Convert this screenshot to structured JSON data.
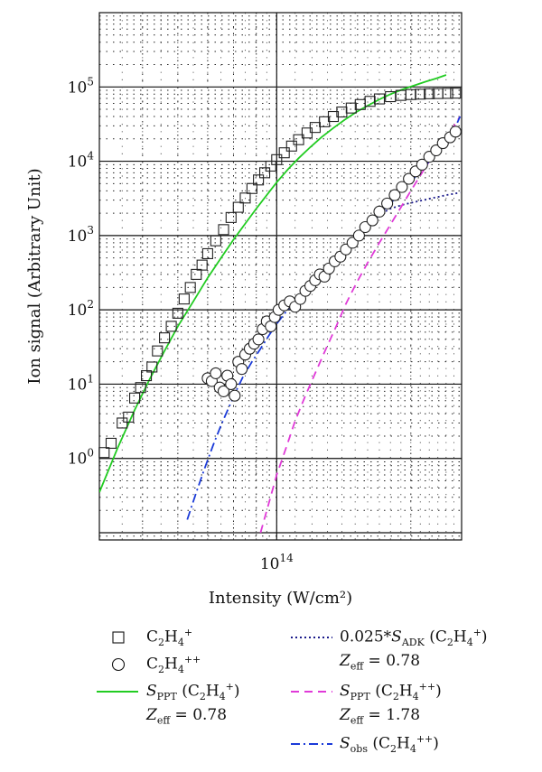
{
  "chart_data": {
    "type": "scatter",
    "xscale": "log",
    "yscale": "log",
    "xlim": [
      40000000000000.0,
      260000000000000.0
    ],
    "ylim": [
      0.08,
      1000000
    ],
    "grid": true,
    "xlabel": "Intensity (W/cm²)",
    "ylabel": "Ion signal (Arbitrary Unit)",
    "x_tick_labels": [
      {
        "value": 100000000000000.0,
        "label": "10",
        "exp": "14"
      }
    ],
    "y_tick_labels": [
      {
        "value": 1,
        "label": "10",
        "exp": "0"
      },
      {
        "value": 10,
        "label": "10",
        "exp": "1"
      },
      {
        "value": 100,
        "label": "10",
        "exp": "2"
      },
      {
        "value": 1000,
        "label": "10",
        "exp": "3"
      },
      {
        "value": 10000,
        "label": "10",
        "exp": "4"
      },
      {
        "value": 100000,
        "label": "10",
        "exp": "5"
      }
    ],
    "series": [
      {
        "name": "C2H4+",
        "kind": "marker-square",
        "color": "#222222",
        "x": [
          41000000000000.0,
          42500000000000.0,
          45000000000000.0,
          46500000000000.0,
          48000000000000.0,
          49500000000000.0,
          51000000000000.0,
          52500000000000.0,
          54000000000000.0,
          56000000000000.0,
          58000000000000.0,
          60000000000000.0,
          62000000000000.0,
          64000000000000.0,
          66000000000000.0,
          68000000000000.0,
          70000000000000.0,
          73000000000000.0,
          76000000000000.0,
          79000000000000.0,
          82000000000000.0,
          85000000000000.0,
          88000000000000.0,
          91000000000000.0,
          94000000000000.0,
          97000000000000.0,
          100000000000000.0,
          104000000000000.0,
          108000000000000.0,
          112000000000000.0,
          117000000000000.0,
          122000000000000.0,
          128000000000000.0,
          134000000000000.0,
          140000000000000.0,
          147000000000000.0,
          154000000000000.0,
          162000000000000.0,
          170000000000000.0,
          180000000000000.0,
          190000000000000.0,
          200000000000000.0,
          210000000000000.0,
          220000000000000.0,
          230000000000000.0,
          242000000000000.0,
          252000000000000.0
        ],
        "y": [
          1.2,
          1.6,
          3.0,
          3.6,
          6.5,
          9,
          13,
          17,
          28,
          42,
          60,
          90,
          140,
          200,
          300,
          400,
          570,
          850,
          1200,
          1750,
          2400,
          3200,
          4300,
          5600,
          7000,
          8600,
          10500,
          13000,
          16000,
          19500,
          24000,
          28500,
          34000,
          40000,
          46000,
          52000,
          58000,
          64000,
          69000,
          74000,
          77000,
          79000,
          80000,
          81000,
          81500,
          82000,
          82500
        ]
      },
      {
        "name": "C2H4++",
        "kind": "marker-circle",
        "color": "#222222",
        "x": [
          70000000000000.0,
          71500000000000.0,
          73000000000000.0,
          74500000000000.0,
          76000000000000.0,
          77500000000000.0,
          79000000000000.0,
          80500000000000.0,
          82000000000000.0,
          83500000000000.0,
          85000000000000.0,
          87000000000000.0,
          89000000000000.0,
          91000000000000.0,
          93000000000000.0,
          95000000000000.0,
          97000000000000.0,
          99000000000000.0,
          101000000000000.0,
          104000000000000.0,
          107000000000000.0,
          110000000000000.0,
          113000000000000.0,
          116000000000000.0,
          119000000000000.0,
          122000000000000.0,
          125000000000000.0,
          128000000000000.0,
          131000000000000.0,
          135000000000000.0,
          139000000000000.0,
          143000000000000.0,
          148000000000000.0,
          153000000000000.0,
          158000000000000.0,
          164000000000000.0,
          170000000000000.0,
          177000000000000.0,
          184000000000000.0,
          191000000000000.0,
          198000000000000.0,
          205000000000000.0,
          212000000000000.0,
          220000000000000.0,
          228000000000000.0,
          236000000000000.0,
          245000000000000.0,
          252000000000000.0
        ],
        "y": [
          12,
          11,
          14,
          9,
          8,
          13,
          10,
          7,
          20,
          16,
          25,
          30,
          35,
          40,
          55,
          70,
          60,
          80,
          100,
          115,
          130,
          110,
          140,
          180,
          210,
          250,
          300,
          280,
          360,
          450,
          520,
          650,
          800,
          1000,
          1300,
          1600,
          2100,
          2700,
          3500,
          4500,
          5800,
          7300,
          9000,
          11500,
          14000,
          17500,
          21000,
          25000
        ]
      },
      {
        "name": "S_PPT (C2H4+), Zeff = 0.78",
        "kind": "line",
        "color": "#22cc22",
        "dash": "none",
        "x": [
          40000000000000.0,
          44000000000000.0,
          48000000000000.0,
          52000000000000.0,
          56000000000000.0,
          60000000000000.0,
          65000000000000.0,
          70000000000000.0,
          75000000000000.0,
          80000000000000.0,
          85000000000000.0,
          90000000000000.0,
          95000000000000.0,
          100000000000000.0,
          106000000000000.0,
          112000000000000.0,
          119000000000000.0,
          126000000000000.0,
          134000000000000.0,
          142000000000000.0,
          151000000000000.0,
          160000000000000.0,
          170000000000000.0,
          180000000000000.0,
          192000000000000.0,
          204000000000000.0,
          216000000000000.0,
          228000000000000.0,
          240000000000000.0
        ],
        "y": [
          0.35,
          1.4,
          4.5,
          12,
          28,
          60,
          130,
          270,
          500,
          880,
          1450,
          2300,
          3500,
          5200,
          7800,
          11000,
          15500,
          21000,
          28000,
          36000,
          46000,
          56000,
          68000,
          80000,
          93000,
          105000,
          118000,
          130000,
          145000
        ]
      },
      {
        "name": "0.025*S_ADK (C2H4+), Zeff = 0.78",
        "kind": "line",
        "color": "#1a1a8a",
        "dash": "2,3",
        "x": [
          160000000000000.0,
          165000000000000.0,
          170000000000000.0,
          175000000000000.0,
          180000000000000.0,
          186000000000000.0,
          192000000000000.0,
          200000000000000.0,
          208000000000000.0,
          216000000000000.0,
          224000000000000.0,
          232000000000000.0,
          240000000000000.0,
          250000000000000.0,
          258000000000000.0
        ],
        "y": [
          1400,
          1650,
          1900,
          2100,
          2300,
          2450,
          2600,
          2750,
          2900,
          3050,
          3200,
          3350,
          3500,
          3650,
          3800
        ]
      },
      {
        "name": "S_PPT (C2H4++), Zeff = 1.78",
        "kind": "line",
        "color": "#e03ad8",
        "dash": "9,6",
        "x": [
          92000000000000.0,
          96000000000000.0,
          100000000000000.0,
          105000000000000.0,
          110000000000000.0,
          116000000000000.0,
          122000000000000.0,
          129000000000000.0,
          136000000000000.0,
          143000000000000.0,
          151000000000000.0,
          160000000000000.0,
          170000000000000.0,
          180000000000000.0,
          190000000000000.0,
          200000000000000.0,
          210000000000000.0,
          220000000000000.0,
          230000000000000.0,
          242000000000000.0,
          258000000000000.0
        ],
        "y": [
          0.1,
          0.25,
          0.6,
          1.4,
          3.2,
          7,
          14,
          30,
          60,
          120,
          230,
          430,
          800,
          1400,
          2400,
          4000,
          6400,
          10000,
          15000,
          22000,
          40000
        ]
      },
      {
        "name": "S_obs (C2H4++)",
        "kind": "line",
        "color": "#1a3ad8",
        "dash": "10,4,2,4",
        "x": [
          63000000000000.0,
          66000000000000.0,
          69000000000000.0,
          72000000000000.0,
          75000000000000.0,
          78000000000000.0,
          81000000000000.0,
          84000000000000.0,
          88000000000000.0,
          92000000000000.0,
          96000000000000.0,
          100000000000000.0,
          105000000000000.0,
          110000000000000.0,
          116000000000000.0,
          122000000000000.0,
          129000000000000.0,
          136000000000000.0,
          144000000000000.0,
          152000000000000.0,
          161000000000000.0,
          170000000000000.0,
          180000000000000.0,
          190000000000000.0,
          200000000000000.0,
          210000000000000.0,
          220000000000000.0,
          232000000000000.0,
          245000000000000.0,
          258000000000000.0
        ],
        "y": [
          0.15,
          0.35,
          0.75,
          1.5,
          2.8,
          4.8,
          8,
          12.5,
          20,
          30,
          45,
          65,
          95,
          130,
          180,
          250,
          350,
          480,
          680,
          950,
          1350,
          1900,
          2700,
          3800,
          5300,
          7300,
          10000,
          14000,
          20000,
          40000
        ]
      }
    ],
    "legend": {
      "placement": "bottom",
      "entries": [
        {
          "symbol": "square",
          "parts": [
            [
              "n",
              "C"
            ],
            [
              "sub",
              "2"
            ],
            [
              "n",
              "H"
            ],
            [
              "sub",
              "4"
            ],
            [
              "sup",
              "+"
            ]
          ]
        },
        {
          "symbol": "circle",
          "parts": [
            [
              "n",
              "C"
            ],
            [
              "sub",
              "2"
            ],
            [
              "n",
              "H"
            ],
            [
              "sub",
              "4"
            ],
            [
              "sup",
              "++"
            ]
          ]
        },
        {
          "symbol": "line-solid-green",
          "parts": [
            [
              "i",
              "S"
            ],
            [
              "sub",
              "PPT"
            ],
            [
              "n",
              " (C"
            ],
            [
              "sub",
              "2"
            ],
            [
              "n",
              "H"
            ],
            [
              "sub",
              "4"
            ],
            [
              "sup",
              "+"
            ],
            [
              "n",
              ")"
            ]
          ],
          "sub_line": [
            [
              "i",
              "Z"
            ],
            [
              "sub",
              "eff"
            ],
            [
              "n",
              " = 0.78"
            ]
          ]
        },
        {
          "symbol": "line-dotted-navy",
          "parts": [
            [
              "n",
              "0.025*"
            ],
            [
              "i",
              "S"
            ],
            [
              "sub",
              "ADK"
            ],
            [
              "n",
              " (C"
            ],
            [
              "sub",
              "2"
            ],
            [
              "n",
              "H"
            ],
            [
              "sub",
              "4"
            ],
            [
              "sup",
              "+"
            ],
            [
              "n",
              ")"
            ]
          ],
          "sub_line": [
            [
              "i",
              "Z"
            ],
            [
              "sub",
              "eff"
            ],
            [
              "n",
              " = 0.78"
            ]
          ]
        },
        {
          "symbol": "line-dashed-magenta",
          "parts": [
            [
              "i",
              "S"
            ],
            [
              "sub",
              "PPT"
            ],
            [
              "n",
              " (C"
            ],
            [
              "sub",
              "2"
            ],
            [
              "n",
              "H"
            ],
            [
              "sub",
              "4"
            ],
            [
              "sup",
              "++"
            ],
            [
              "n",
              ")"
            ]
          ],
          "sub_line": [
            [
              "i",
              "Z"
            ],
            [
              "sub",
              "eff"
            ],
            [
              "n",
              " = 1.78"
            ]
          ]
        },
        {
          "symbol": "line-dashdot-blue",
          "parts": [
            [
              "i",
              "S"
            ],
            [
              "sub",
              "obs"
            ],
            [
              "n",
              " (C"
            ],
            [
              "sub",
              "2"
            ],
            [
              "n",
              "H"
            ],
            [
              "sub",
              "4"
            ],
            [
              "sup",
              "++"
            ],
            [
              "n",
              ")"
            ]
          ]
        }
      ]
    }
  }
}
